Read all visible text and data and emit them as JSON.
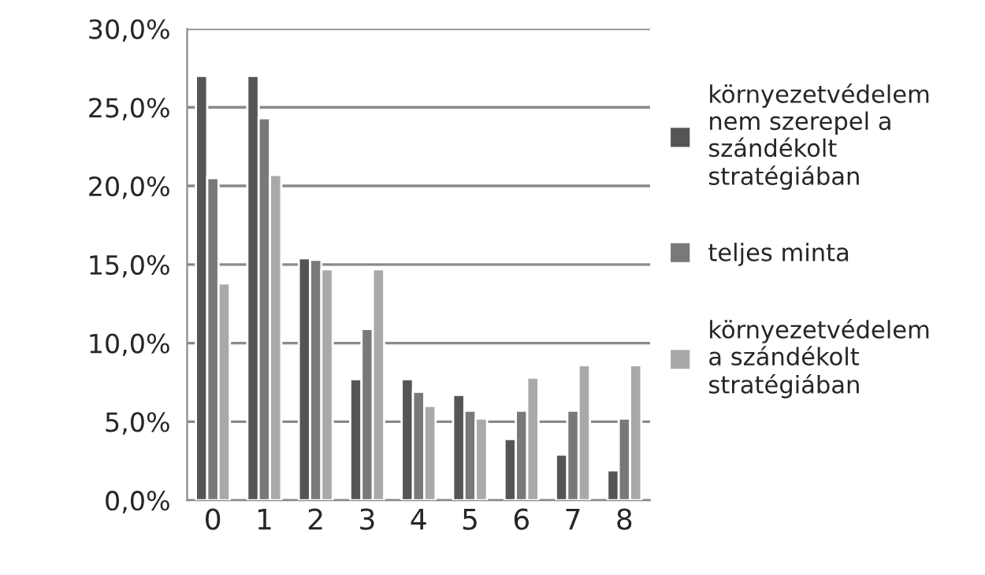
{
  "chart_data": {
    "type": "bar",
    "categories": [
      "0",
      "1",
      "2",
      "3",
      "4",
      "5",
      "6",
      "7",
      "8"
    ],
    "series": [
      {
        "name": "környezetvédelem nem szerepel a szándékolt stratégiában",
        "color": "#555557",
        "values": [
          27.0,
          27.0,
          15.4,
          7.7,
          7.7,
          6.7,
          3.9,
          2.9,
          1.9
        ]
      },
      {
        "name": "teljes minta",
        "color": "#79797b",
        "values": [
          20.5,
          24.3,
          15.3,
          10.9,
          6.9,
          5.7,
          5.7,
          5.7,
          5.2
        ]
      },
      {
        "name": "környezetvédelem a szándékolt stratégiában",
        "color": "#a9a9ab",
        "values": [
          13.8,
          20.7,
          14.7,
          14.7,
          6.0,
          5.2,
          7.8,
          8.6,
          8.6
        ]
      }
    ],
    "ylim": [
      0,
      30
    ],
    "yticks": [
      {
        "value": 0,
        "label": "0,0%"
      },
      {
        "value": 5,
        "label": "5,0%"
      },
      {
        "value": 10,
        "label": "10,0%"
      },
      {
        "value": 15,
        "label": "15,0%"
      },
      {
        "value": 20,
        "label": "20,0%"
      },
      {
        "value": 25,
        "label": "25,0%"
      },
      {
        "value": 30,
        "label": "30,0%"
      }
    ],
    "grid": "y",
    "legend": "right"
  }
}
